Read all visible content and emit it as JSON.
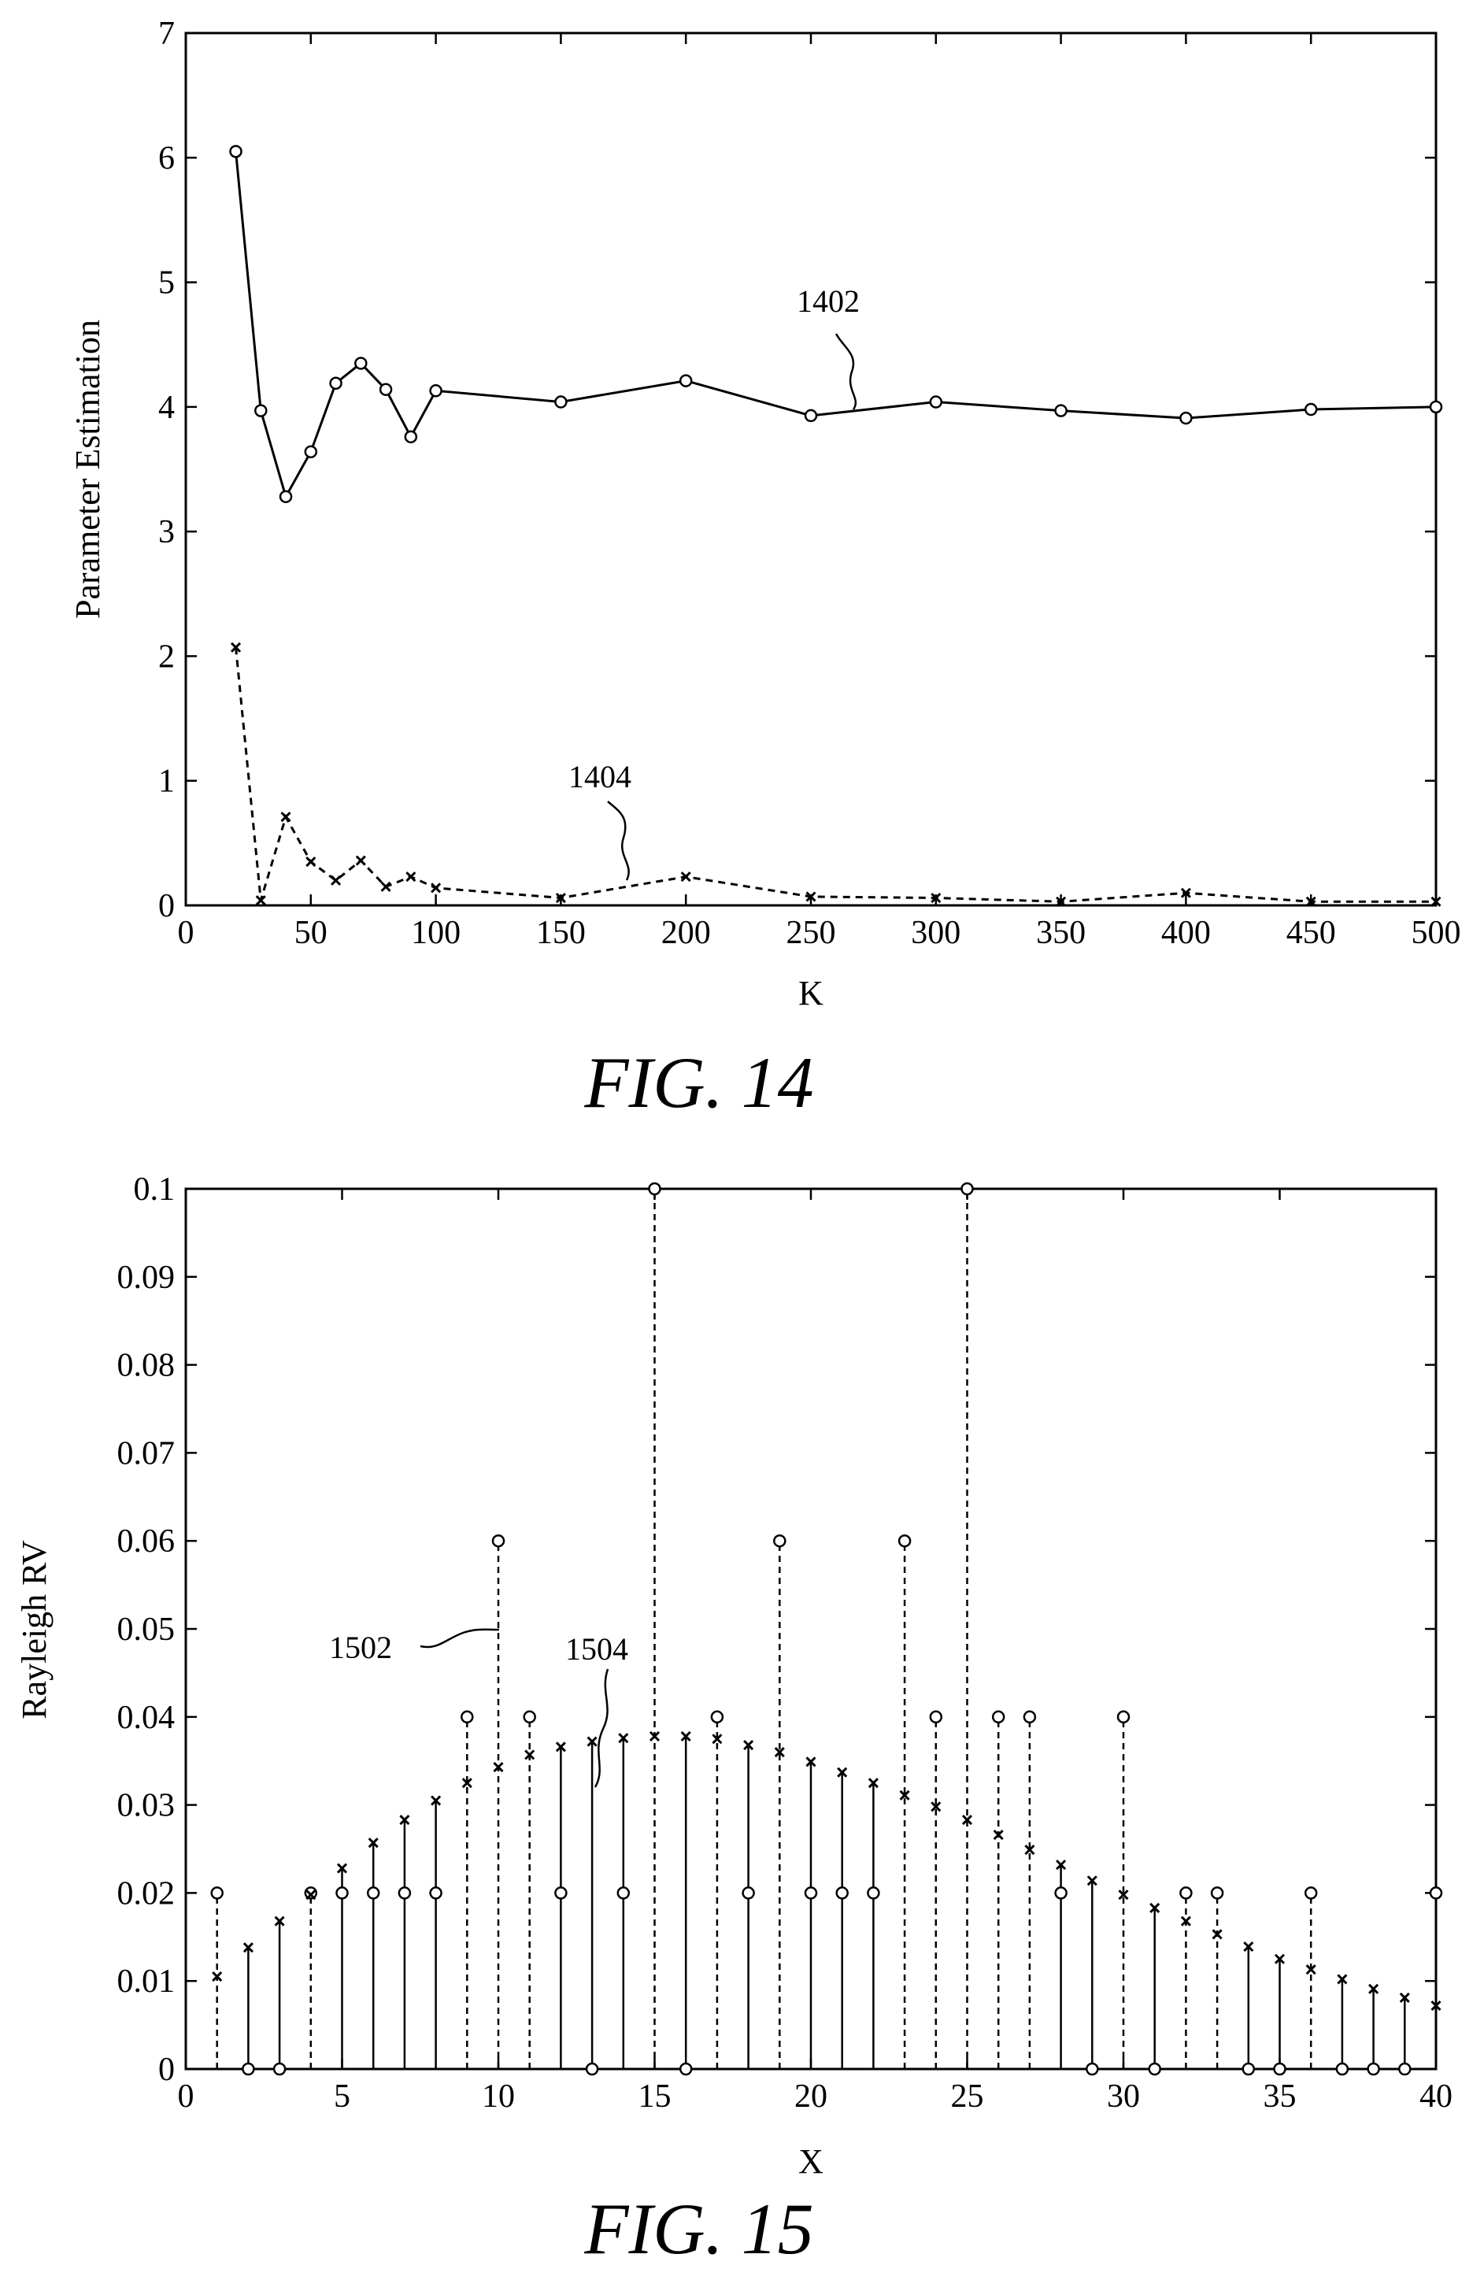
{
  "chart_data": [
    {
      "type": "line",
      "xlabel": "K",
      "ylabel": "Parameter Estimation",
      "caption": "FIG. 14",
      "xlim": [
        0,
        500
      ],
      "ylim": [
        0,
        7
      ],
      "xticks": [
        0,
        50,
        100,
        150,
        200,
        250,
        300,
        350,
        400,
        450,
        500
      ],
      "yticks": [
        0,
        1,
        2,
        3,
        4,
        5,
        6,
        7
      ],
      "grid": false,
      "series": [
        {
          "ref": "1402",
          "style": "solid",
          "marker": "circle",
          "x": [
            20,
            30,
            40,
            50,
            60,
            70,
            80,
            90,
            100,
            150,
            200,
            250,
            300,
            350,
            400,
            450,
            500
          ],
          "y": [
            6.05,
            3.97,
            3.28,
            3.64,
            4.19,
            4.35,
            4.14,
            3.76,
            4.13,
            4.04,
            4.21,
            3.93,
            4.04,
            3.97,
            3.91,
            3.98,
            4.0
          ]
        },
        {
          "ref": "1404",
          "style": "dashed",
          "marker": "x",
          "x": [
            20,
            30,
            40,
            50,
            60,
            70,
            80,
            90,
            100,
            150,
            200,
            250,
            300,
            350,
            400,
            450,
            500
          ],
          "y": [
            2.07,
            0.04,
            0.71,
            0.35,
            0.2,
            0.36,
            0.15,
            0.23,
            0.14,
            0.06,
            0.23,
            0.07,
            0.06,
            0.03,
            0.1,
            0.03,
            0.03
          ]
        }
      ],
      "annotations": [
        "1402",
        "1404"
      ]
    },
    {
      "type": "scatter",
      "xlabel": "X",
      "ylabel": "Rayleigh RV",
      "caption": "FIG. 15",
      "xlim": [
        0,
        40
      ],
      "ylim": [
        0,
        0.1
      ],
      "xticks": [
        0,
        5,
        10,
        15,
        20,
        25,
        30,
        35,
        40
      ],
      "yticks": [
        "0",
        "0.01",
        "0.02",
        "0.03",
        "0.04",
        "0.05",
        "0.06",
        "0.07",
        "0.08",
        "0.09",
        "0.1"
      ],
      "grid": false,
      "series": [
        {
          "ref": "1502",
          "style": "circle markers",
          "x": [
            1,
            2,
            3,
            4,
            5,
            6,
            7,
            8,
            9,
            10,
            11,
            12,
            13,
            14,
            15,
            16,
            17,
            18,
            19,
            20,
            21,
            22,
            23,
            24,
            25,
            26,
            27,
            28,
            29,
            30,
            31,
            32,
            33,
            34,
            35,
            36,
            37,
            38,
            39,
            40
          ],
          "y": [
            0.02,
            0,
            0,
            0.02,
            0.02,
            0.02,
            0.02,
            0.02,
            0.04,
            0.06,
            0.04,
            0.02,
            0,
            0.02,
            0.1,
            0,
            0.04,
            0.02,
            0.06,
            0.02,
            0.02,
            0.02,
            0.06,
            0.04,
            0.1,
            0.04,
            0.04,
            0.02,
            0,
            0.04,
            0,
            0.02,
            0.02,
            0,
            0,
            0.02,
            0,
            0,
            0,
            0.02
          ]
        },
        {
          "ref": "1504",
          "style": "x markers",
          "x": [
            1,
            2,
            3,
            4,
            5,
            6,
            7,
            8,
            9,
            10,
            11,
            12,
            13,
            14,
            15,
            16,
            17,
            18,
            19,
            20,
            21,
            22,
            23,
            24,
            25,
            26,
            27,
            28,
            29,
            30,
            31,
            32,
            33,
            34,
            35,
            36,
            37,
            38,
            39,
            40
          ],
          "y": [
            0.0105,
            0.0138,
            0.0168,
            0.0198,
            0.0228,
            0.0257,
            0.0283,
            0.0305,
            0.0325,
            0.0343,
            0.0357,
            0.0366,
            0.0372,
            0.0376,
            0.0378,
            0.0378,
            0.0375,
            0.0368,
            0.036,
            0.0349,
            0.0337,
            0.0325,
            0.0311,
            0.0298,
            0.0283,
            0.0266,
            0.0249,
            0.0232,
            0.0214,
            0.0198,
            0.0183,
            0.0168,
            0.0153,
            0.0139,
            0.0125,
            0.0113,
            0.0102,
            0.0091,
            0.0081,
            0.0072
          ]
        }
      ],
      "annotations": [
        "1502",
        "1504"
      ]
    }
  ]
}
